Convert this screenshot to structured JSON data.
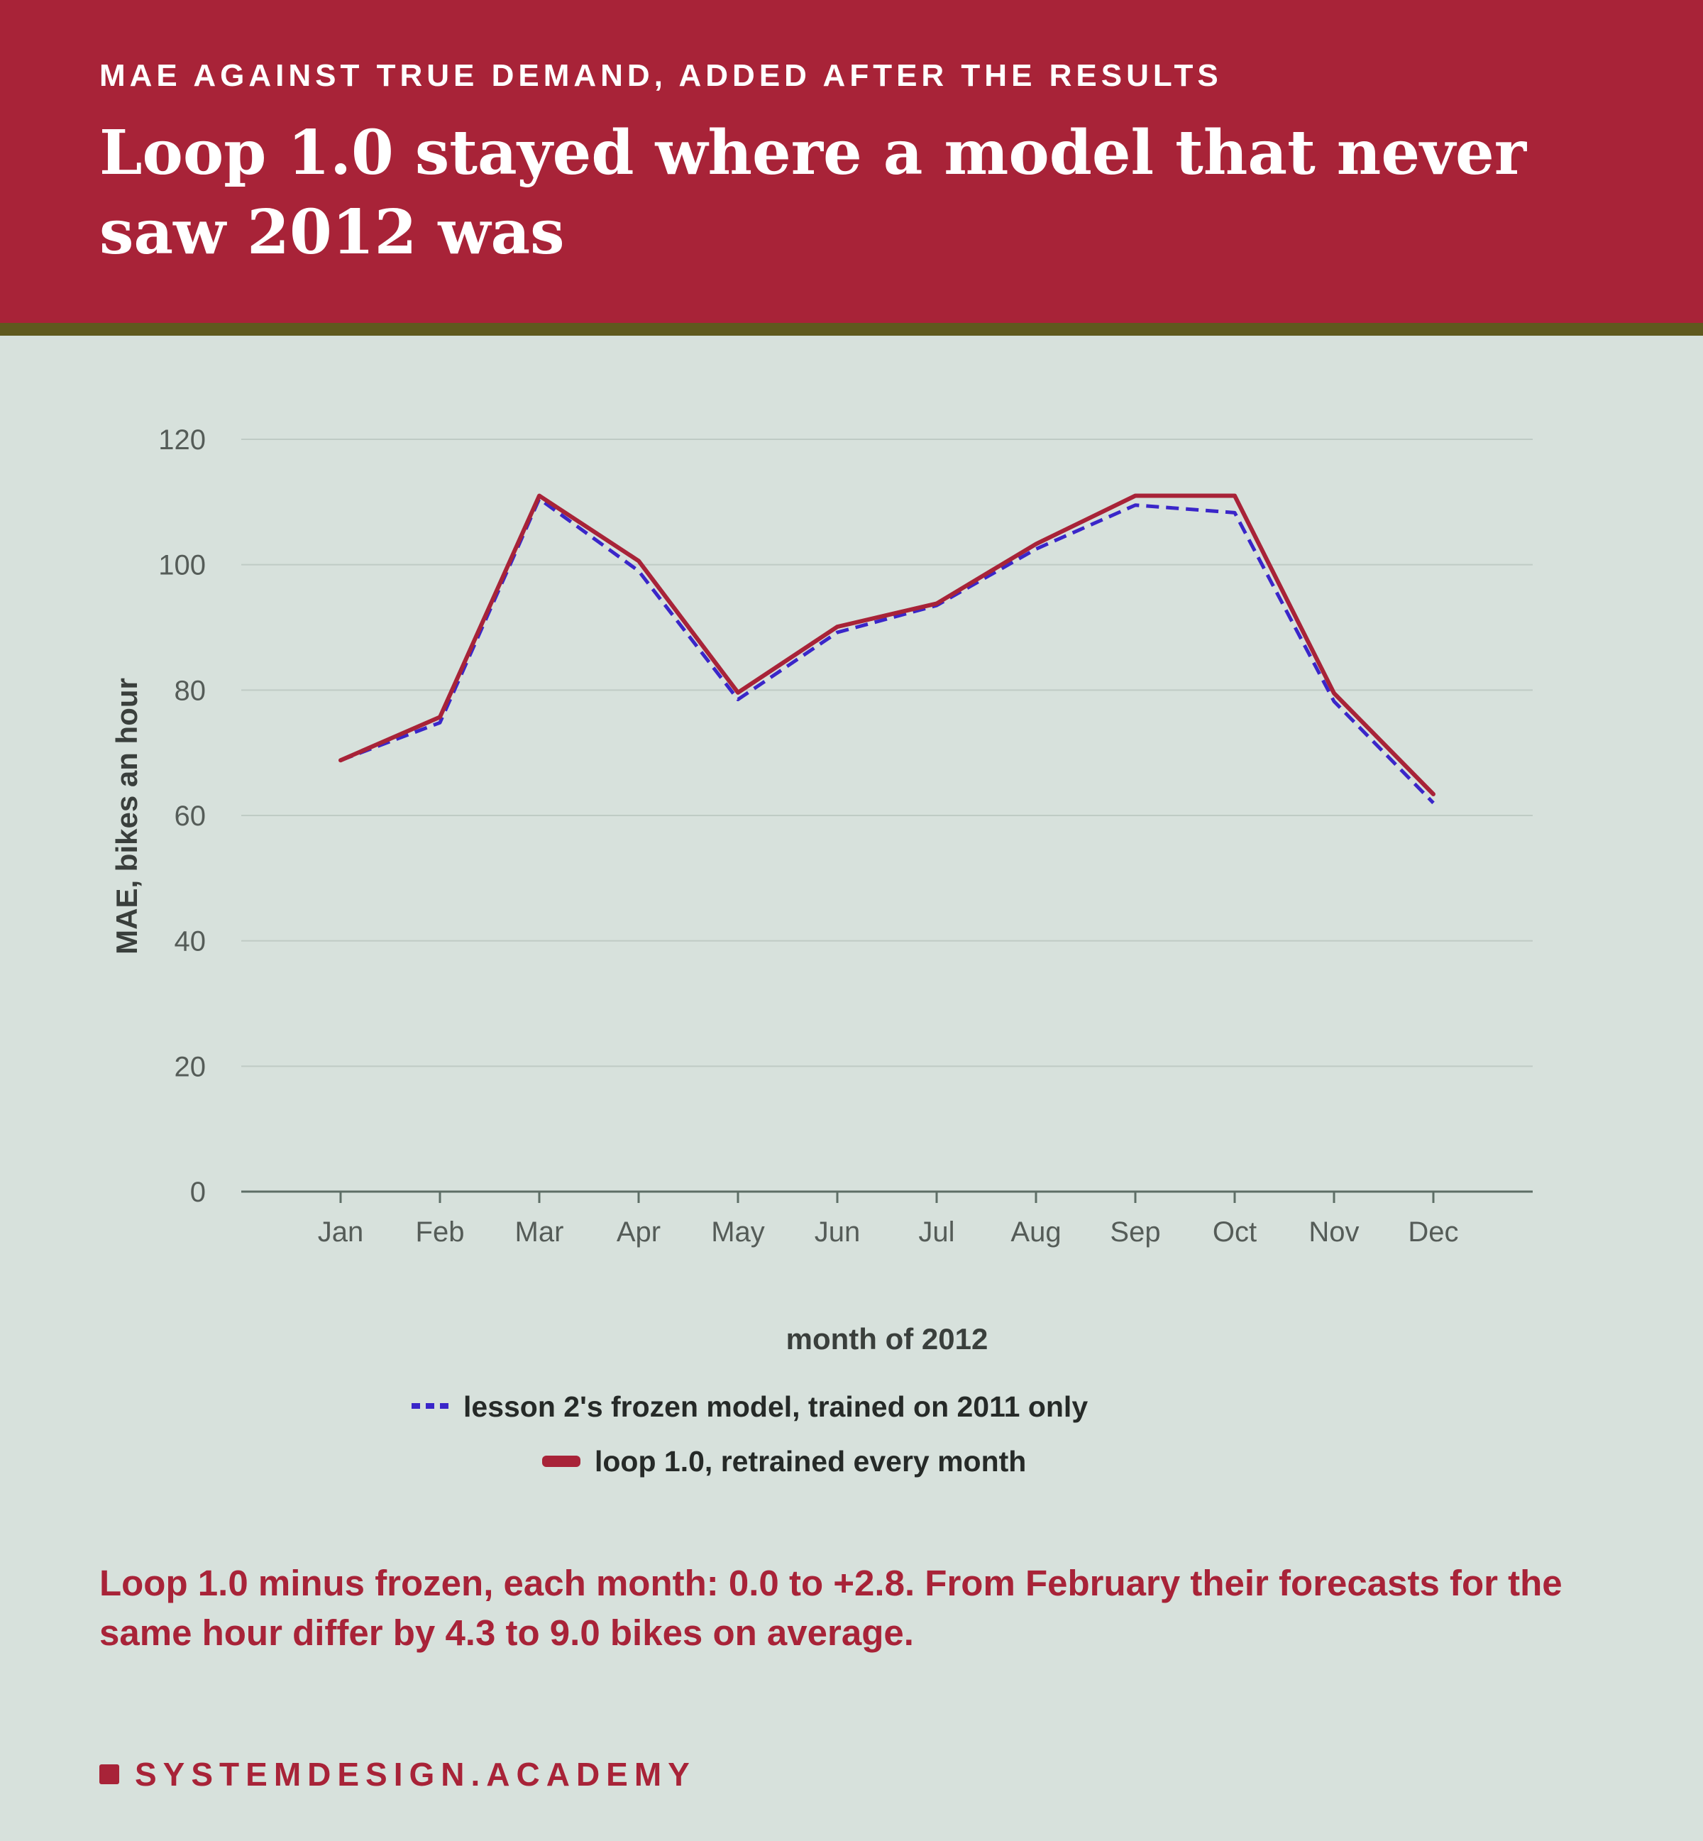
{
  "header": {
    "eyebrow": "MAE AGAINST TRUE DEMAND, ADDED AFTER THE RESULTS",
    "title": "Loop 1.0 stayed where a model that never saw 2012 was"
  },
  "chart_data": {
    "type": "line",
    "categories": [
      "Jan",
      "Feb",
      "Mar",
      "Apr",
      "May",
      "Jun",
      "Jul",
      "Aug",
      "Sep",
      "Oct",
      "Nov",
      "Dec"
    ],
    "series": [
      {
        "name": "lesson 2's frozen model, trained on 2011 only",
        "color": "#3a26c9",
        "style": "dashed",
        "values": [
          68.8,
          74.8,
          110.5,
          99.0,
          78.5,
          89.2,
          93.5,
          102.5,
          109.5,
          108.3,
          78.2,
          62.0
        ]
      },
      {
        "name": "loop 1.0, retrained every month",
        "color": "#a82338",
        "style": "solid",
        "values": [
          68.8,
          75.7,
          111.0,
          100.6,
          79.6,
          90.1,
          93.8,
          103.3,
          111.0,
          111.0,
          79.5,
          63.4
        ]
      }
    ],
    "xlabel": "month of 2012",
    "ylabel": "MAE, bikes an hour",
    "ylim": [
      0,
      120
    ],
    "yticks": [
      0,
      20,
      40,
      60,
      80,
      100,
      120
    ],
    "grid": true,
    "legend_position": "bottom-center"
  },
  "note": "Loop 1.0 minus frozen, each month: 0.0 to +2.8. From February their forecasts for the same hour differ by 4.3 to 9.0 bikes on average.",
  "brand": "SYSTEMDESIGN.ACADEMY"
}
